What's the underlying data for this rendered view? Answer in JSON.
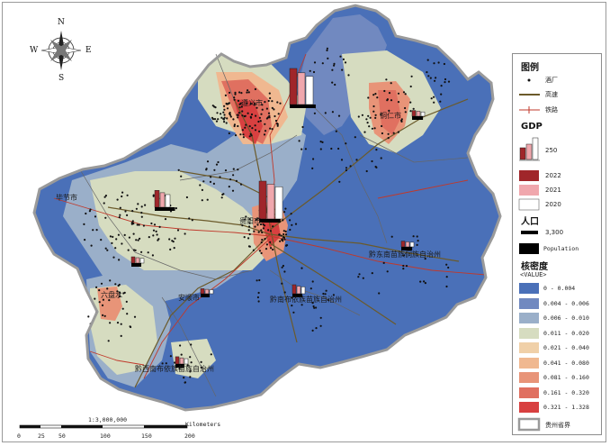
{
  "compass": {
    "n": "N",
    "s": "S",
    "e": "E",
    "w": "W"
  },
  "legend": {
    "title": "图例",
    "wine_factory": "酒厂",
    "highway": "高速",
    "railway": "铁路",
    "gdp_title": "GDP",
    "gdp_scale": "250",
    "year_2022": "2022",
    "year_2021": "2021",
    "year_2020": "2020",
    "pop_title": "人口",
    "pop_scale": "3,300",
    "pop_label": "Population",
    "density_title": "核密度",
    "value_label": "<VALUE>",
    "province_boundary": "贵州省界",
    "colors": {
      "y2022": "#a0262a",
      "y2021": "#f0a7ad",
      "y2020": "#ffffff",
      "population": "#000000"
    },
    "density_classes": [
      {
        "range": "0 - 0.004",
        "color": "#4a70b8"
      },
      {
        "range": "0.004 - 0.006",
        "color": "#7189c0"
      },
      {
        "range": "0.006 - 0.010",
        "color": "#9aafc9"
      },
      {
        "range": "0.011 - 0.020",
        "color": "#d6dcc0"
      },
      {
        "range": "0.021 - 0.040",
        "color": "#f0d0a8"
      },
      {
        "range": "0.041 - 0.080",
        "color": "#f0b890"
      },
      {
        "range": "0.081 - 0.160",
        "color": "#e89478"
      },
      {
        "range": "0.161 - 0.320",
        "color": "#e07060"
      },
      {
        "range": "0.321 - 1.328",
        "color": "#d84040"
      }
    ]
  },
  "regions": [
    {
      "name": "毕节市",
      "gdp": [
        0.72,
        0.62,
        0.54
      ],
      "pop": 0.9
    },
    {
      "name": "遵义市",
      "gdp": [
        1.0,
        0.88,
        0.78
      ],
      "pop": 0.85
    },
    {
      "name": "铜仁市",
      "gdp": [
        0.4,
        0.35,
        0.3
      ],
      "pop": 0.55
    },
    {
      "name": "贵阳市",
      "gdp": [
        1.0,
        0.92,
        0.85
      ],
      "pop": 0.7
    },
    {
      "name": "六盘水",
      "gdp": [
        0.5,
        0.43,
        0.38
      ],
      "pop": 0.5
    },
    {
      "name": "安顺市",
      "gdp": [
        0.4,
        0.35,
        0.32
      ],
      "pop": 0.45
    },
    {
      "name": "黔东南苗族侗族自治州",
      "gdp": [
        0.4,
        0.35,
        0.32
      ],
      "pop": 0.55
    },
    {
      "name": "黔南布依族苗族自治州",
      "gdp": [
        0.5,
        0.42,
        0.38
      ],
      "pop": 0.5
    },
    {
      "name": "黔西南布依族苗族自治州",
      "gdp": [
        0.45,
        0.38,
        0.33
      ],
      "pop": 0.45
    }
  ],
  "scale": {
    "ratio": "1:3,000,000",
    "unit": "Kilometers",
    "ticks": [
      "0",
      "25",
      "50",
      "100",
      "150",
      "200"
    ]
  }
}
